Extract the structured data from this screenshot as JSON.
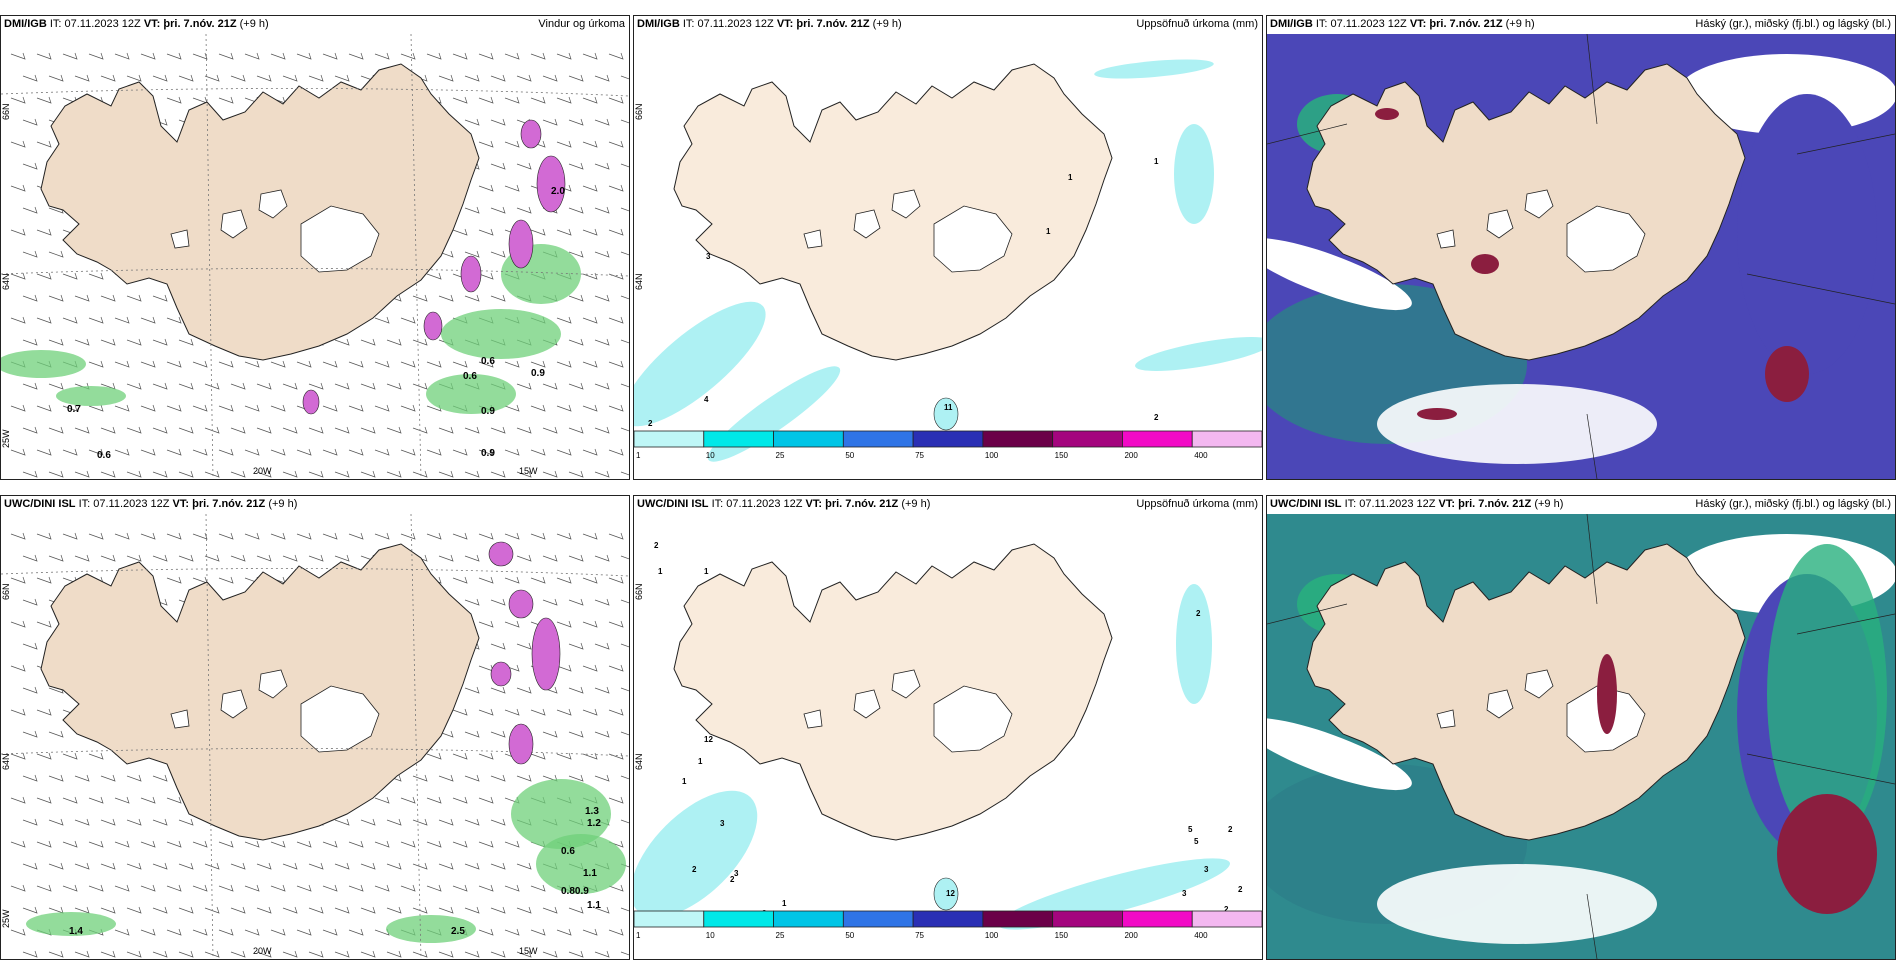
{
  "panels": [
    {
      "source": "DMI/IGB",
      "init": "IT: 07.11.2023 12Z",
      "valid": "VT: þri. 7.nóv. 21Z",
      "lead": "(+9 h)",
      "title": "Vindur og úrkoma",
      "kind": "wind",
      "lat_labels": [
        "66N",
        "64N"
      ],
      "lon_labels": [
        "20W",
        "15W"
      ],
      "extra_lat": "25W",
      "values": [
        "0.7",
        "0.6",
        "0.6",
        "0.6",
        "0.9",
        "0.9",
        "0.9",
        "2.0"
      ]
    },
    {
      "source": "DMI/IGB",
      "init": "IT: 07.11.2023 12Z",
      "valid": "VT: þri. 7.nóv. 21Z",
      "lead": "(+9 h)",
      "title": "Uppsöfnuð úrkoma (mm)",
      "kind": "precip",
      "lat_labels": [
        "66N",
        "64N"
      ],
      "values": [
        "3",
        "4",
        "2",
        "1",
        "1",
        "1",
        "2",
        "11"
      ]
    },
    {
      "source": "DMI/IGB",
      "init": "IT: 07.11.2023 12Z",
      "valid": "VT: þri. 7.nóv. 21Z",
      "lead": "(+9 h)",
      "title": "Háský (gr.), miðský (fj.bl.) og lágský (bl.)",
      "kind": "cloud"
    },
    {
      "source": "UWC/DINI ISL",
      "init": "IT: 07.11.2023 12Z",
      "valid": "VT: þri. 7.nóv. 21Z",
      "lead": "(+9 h)",
      "title": "",
      "kind": "wind",
      "lat_labels": [
        "66N",
        "64N"
      ],
      "lon_labels": [
        "20W",
        "15W"
      ],
      "extra_lat": "25W",
      "values": [
        "1.4",
        "2.5",
        "0.6",
        "1.1",
        "1.3",
        "1.2",
        "0.80.9",
        "1.1"
      ]
    },
    {
      "source": "UWC/DINI ISL",
      "init": "IT: 07.11.2023 12Z",
      "valid": "VT: þri. 7.nóv. 21Z",
      "lead": "(+9 h)",
      "title": "Uppsöfnuð úrkoma (mm)",
      "kind": "precip",
      "lat_labels": [
        "66N",
        "64N"
      ],
      "values": [
        "2",
        "1",
        "1",
        "12",
        "1",
        "1",
        "3",
        "3",
        "2",
        "2",
        "1",
        "2",
        "3",
        "5",
        "5",
        "3",
        "2",
        "2",
        "2",
        "2",
        "12"
      ]
    },
    {
      "source": "UWC/DINI ISL",
      "init": "IT: 07.11.2023 12Z",
      "valid": "VT: þri. 7.nóv. 21Z",
      "lead": "(+9 h)",
      "title": "Háský (gr.), miðský (fj.bl.) og lágský (bl.)",
      "kind": "cloud"
    }
  ],
  "colorbar": {
    "ticks": [
      "1",
      "10",
      "25",
      "50",
      "75",
      "100",
      "150",
      "200",
      "400"
    ],
    "colors": [
      "#bff7f7",
      "#00e8e8",
      "#00c5e6",
      "#2f74e6",
      "#2a2fb4",
      "#6b0048",
      "#a4057e",
      "#f20ac6",
      "#f3b8f0"
    ]
  },
  "colors": {
    "land": "#f9ebdc",
    "land_dark": "#efdcc8",
    "green": "#6fd07a",
    "magenta": "#d26ad4",
    "cyan": "#aef1f3",
    "cloud_blue": "#4b47b7",
    "cloud_green": "#28b07e",
    "cloud_red": "#8b1e3f",
    "cloud_teal": "#2d7f8a"
  }
}
